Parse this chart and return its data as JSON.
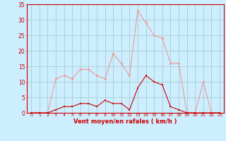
{
  "x": [
    0,
    1,
    2,
    3,
    4,
    5,
    6,
    7,
    8,
    9,
    10,
    11,
    12,
    13,
    14,
    15,
    16,
    17,
    18,
    19,
    20,
    21,
    22,
    23
  ],
  "rafales": [
    0,
    0,
    0,
    11,
    12,
    11,
    14,
    14,
    12,
    11,
    19,
    16,
    12,
    33,
    29,
    25,
    24,
    16,
    16,
    0,
    0,
    10,
    0,
    0
  ],
  "moyen": [
    0,
    0,
    0,
    1,
    2,
    2,
    3,
    3,
    2,
    4,
    3,
    3,
    1,
    8,
    12,
    10,
    9,
    2,
    1,
    0,
    0,
    0,
    0,
    0
  ],
  "bg_color": "#cceeff",
  "grid_color": "#aacccc",
  "line_color_rafales": "#ee9999",
  "line_color_moyen": "#cc0000",
  "xlabel": "Vent moyen/en rafales ( km/h )",
  "xlabel_color": "#cc0000",
  "tick_color": "#cc0000",
  "axis_color": "#cc0000",
  "ylim": [
    0,
    35
  ],
  "yticks": [
    0,
    5,
    10,
    15,
    20,
    25,
    30,
    35
  ],
  "xlim": [
    -0.5,
    23.5
  ]
}
